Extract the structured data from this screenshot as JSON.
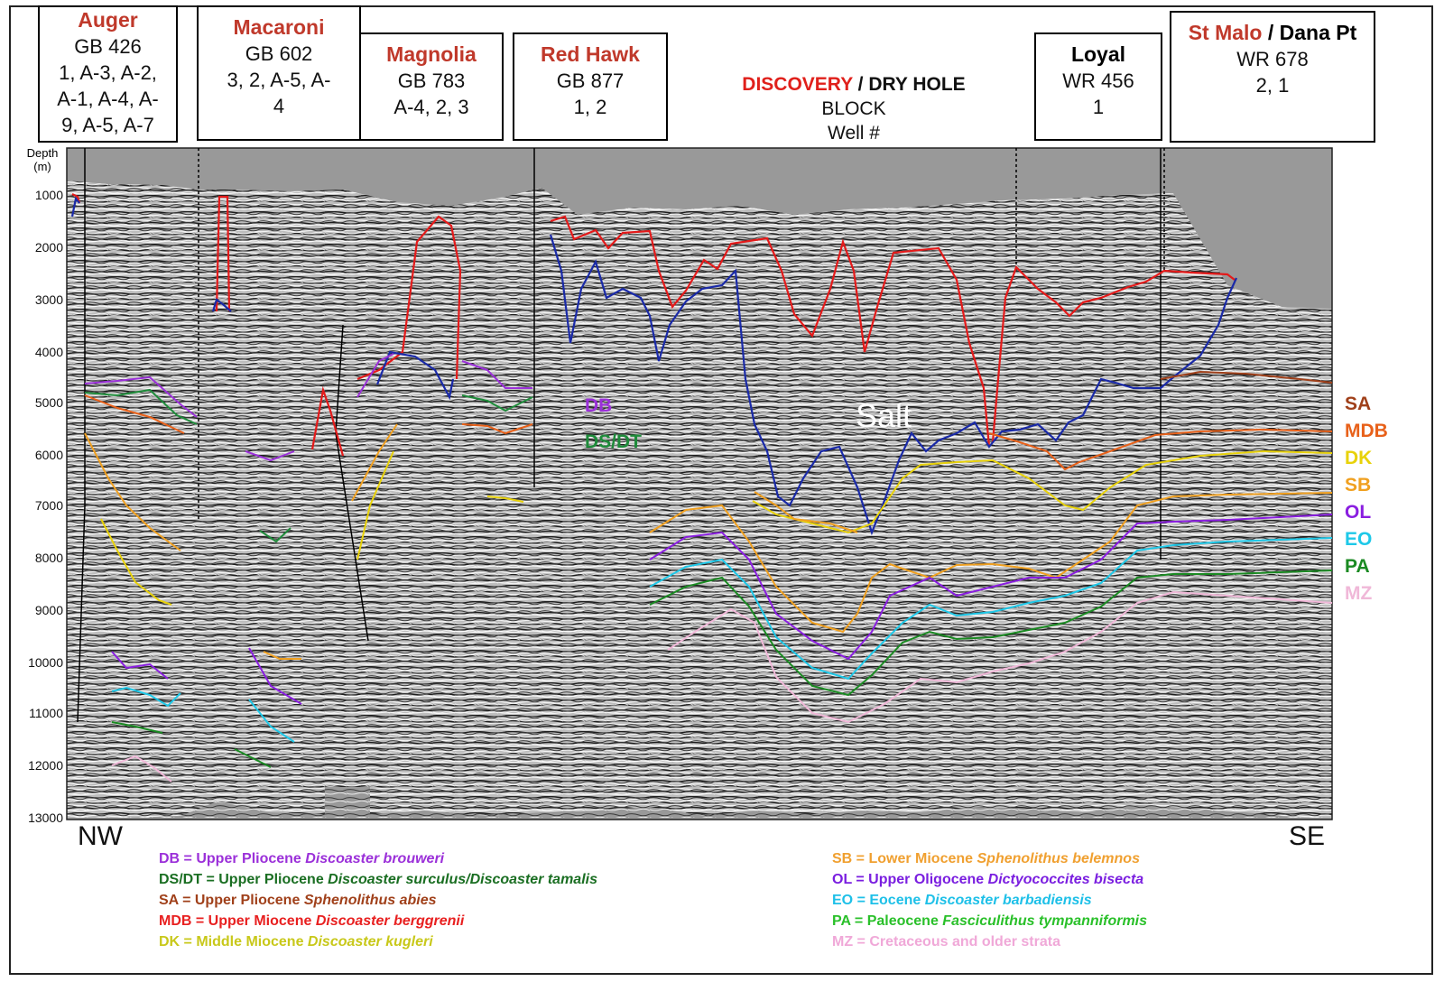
{
  "wells": [
    {
      "id": "auger",
      "name": "Auger",
      "name2": "",
      "block": "GB 426",
      "wells": [
        "1, A-3, A-2,",
        "A-1, A-4, A-",
        "9, A-5, A-7"
      ]
    },
    {
      "id": "macaroni",
      "name": "Macaroni",
      "name2": "",
      "block": "GB 602",
      "wells": [
        "3, 2, A-5, A-",
        "4"
      ]
    },
    {
      "id": "magnolia",
      "name": "Magnolia",
      "name2": "",
      "block": "GB 783",
      "wells": [
        "A-4, 2, 3"
      ]
    },
    {
      "id": "red-hawk",
      "name": "Red Hawk",
      "name2": "",
      "block": "GB 877",
      "wells": [
        "1, 2"
      ]
    },
    {
      "id": "loyal",
      "name": "Loyal",
      "name2": "",
      "block": "WR 456",
      "wells": [
        "1"
      ]
    },
    {
      "id": "st-malo",
      "name": "St Malo",
      "name2": "Dana Pt",
      "block": "WR 678",
      "wells": [
        "2, 1"
      ]
    }
  ],
  "key": {
    "discovery": "DISCOVERY",
    "sep": " / ",
    "dry_hole": "DRY HOLE",
    "block": "BLOCK",
    "well": "Well #"
  },
  "depth_axis": {
    "title": "Depth (m)",
    "ticks": [
      1000,
      2000,
      3000,
      4000,
      5000,
      6000,
      7000,
      8000,
      9000,
      10000,
      11000,
      12000,
      13000
    ]
  },
  "directions": {
    "left": "NW",
    "right": "SE"
  },
  "salt_label": "Salt",
  "inline_labels": [
    {
      "code": "DB",
      "color": "#9b30d9"
    },
    {
      "code": "DS/DT",
      "color": "#1e8b3a"
    }
  ],
  "horizon_labels": [
    {
      "code": "SA",
      "color": "#a0401a"
    },
    {
      "code": "MDB",
      "color": "#e8611a"
    },
    {
      "code": "DK",
      "color": "#e8d20a"
    },
    {
      "code": "SB",
      "color": "#f0a020"
    },
    {
      "code": "OL",
      "color": "#8a1ee0"
    },
    {
      "code": "EO",
      "color": "#1ec8e8"
    },
    {
      "code": "PA",
      "color": "#1a8a22"
    },
    {
      "code": "MZ",
      "color": "#f0b8d8"
    }
  ],
  "legend": [
    {
      "code": "DB",
      "age": "Upper Pliocene",
      "species": "Discoaster brouweri",
      "color": "#9b30d9"
    },
    {
      "code": "DS/DT",
      "age": "Upper Pliocene",
      "species": "Discoaster surculus/Discoaster tamalis",
      "color": "#1a6e22"
    },
    {
      "code": "SA",
      "age": "Upper Pliocene",
      "species": "Sphenolithus abies",
      "color": "#a0401a"
    },
    {
      "code": "MDB",
      "age": "Upper Miocene",
      "species": "Discoaster berggrenii",
      "color": "#e82020"
    },
    {
      "code": "DK",
      "age": "Middle Miocene",
      "species": "Discoaster kugleri",
      "color": "#c8c81a"
    },
    {
      "code": "SB",
      "age": "Lower Miocene",
      "species": "Sphenolithus belemnos",
      "color": "#f0a030"
    },
    {
      "code": "OL",
      "age": "Upper Oligocene",
      "species": "Dictyococcites bisecta",
      "color": "#7a1ee0"
    },
    {
      "code": "EO",
      "age": "Eocene",
      "species": "Discoaster barbadiensis",
      "color": "#1ec0e8"
    },
    {
      "code": "PA",
      "age": "Paleocene",
      "species": "Fasciculithus tympanniformis",
      "color": "#2ac02a"
    },
    {
      "code": "MZ",
      "age": "",
      "species": "Cretaceous and older strata",
      "color": "#f0a8d8"
    }
  ],
  "colors": {
    "salt_top": "#e41a1a",
    "salt_base": "#1a2aa8",
    "section_bg": "#999999"
  }
}
